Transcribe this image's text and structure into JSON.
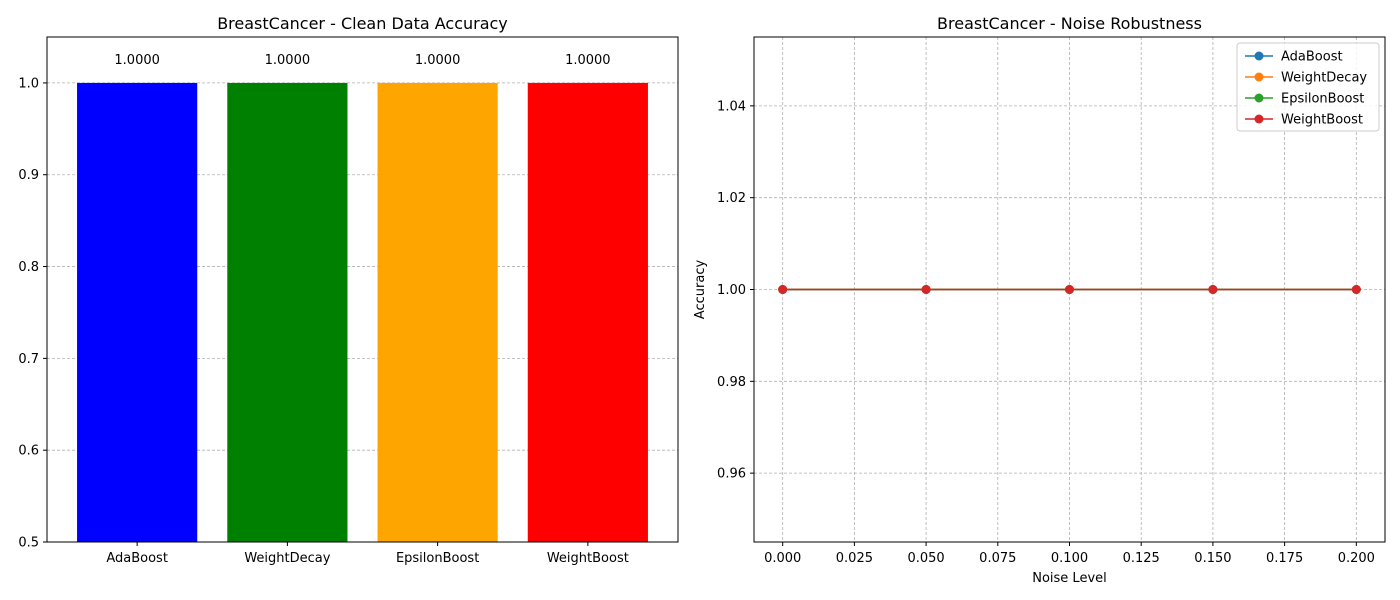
{
  "chart_data": [
    {
      "type": "bar",
      "title": "BreastCancer - Clean Data Accuracy",
      "xlabel": "",
      "ylabel": "",
      "categories": [
        "AdaBoost",
        "WeightDecay",
        "EpsilonBoost",
        "WeightBoost"
      ],
      "values": [
        1.0,
        1.0,
        1.0,
        1.0
      ],
      "data_labels": [
        "1.0000",
        "1.0000",
        "1.0000",
        "1.0000"
      ],
      "colors": [
        "#0000ff",
        "#008000",
        "#ffa500",
        "#ff0000"
      ],
      "ylim": [
        0.5,
        1.05
      ],
      "yticks": [
        0.5,
        0.6,
        0.7,
        0.8,
        0.9,
        1.0
      ],
      "ytick_labels": [
        "0.5",
        "0.6",
        "0.7",
        "0.8",
        "0.9",
        "1.0"
      ],
      "grid": "y-dashed",
      "legend": "none"
    },
    {
      "type": "line",
      "title": "BreastCancer - Noise Robustness",
      "xlabel": "Noise Level",
      "ylabel": "Accuracy",
      "x": [
        0.0,
        0.05,
        0.1,
        0.15,
        0.2
      ],
      "series": [
        {
          "name": "AdaBoost",
          "color": "#1f77b4",
          "values": [
            1.0,
            1.0,
            1.0,
            1.0,
            1.0
          ]
        },
        {
          "name": "WeightDecay",
          "color": "#ff7f0e",
          "values": [
            1.0,
            1.0,
            1.0,
            1.0,
            1.0
          ]
        },
        {
          "name": "EpsilonBoost",
          "color": "#2ca02c",
          "values": [
            1.0,
            1.0,
            1.0,
            1.0,
            1.0
          ]
        },
        {
          "name": "WeightBoost",
          "color": "#d62728",
          "values": [
            1.0,
            1.0,
            1.0,
            1.0,
            1.0
          ]
        }
      ],
      "xlim": [
        -0.01,
        0.21
      ],
      "ylim": [
        0.945,
        1.055
      ],
      "xticks": [
        0.0,
        0.025,
        0.05,
        0.075,
        0.1,
        0.125,
        0.15,
        0.175,
        0.2
      ],
      "xtick_labels": [
        "0.000",
        "0.025",
        "0.050",
        "0.075",
        "0.100",
        "0.125",
        "0.150",
        "0.175",
        "0.200"
      ],
      "yticks": [
        0.96,
        0.98,
        1.0,
        1.02,
        1.04
      ],
      "ytick_labels": [
        "0.96",
        "0.98",
        "1.00",
        "1.02",
        "1.04"
      ],
      "grid": "both-dashed",
      "legend": "top-right"
    }
  ]
}
